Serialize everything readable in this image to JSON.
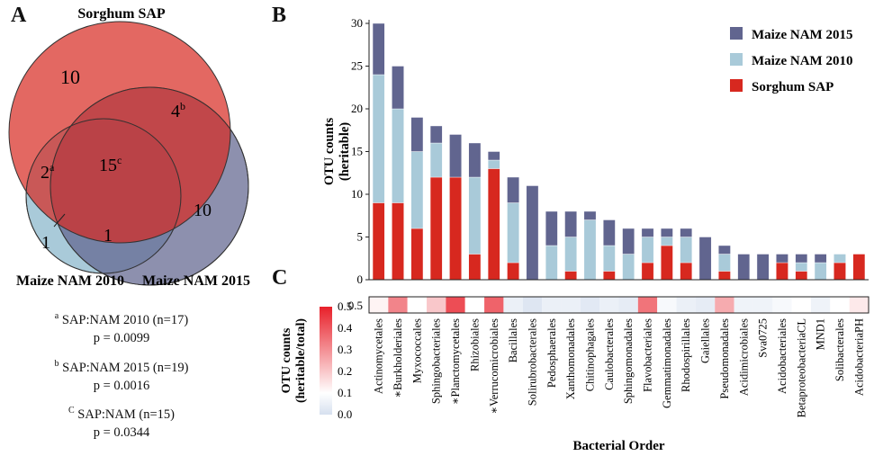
{
  "panels": {
    "a": "A",
    "b": "B",
    "c": "C"
  },
  "colors": {
    "maize2015": "#61658f",
    "maize2010": "#a9cad9",
    "sorghum": "#d7281f"
  },
  "venn": {
    "sets": {
      "sorghum": "Sorghum SAP",
      "nam2010": "Maize NAM 2010",
      "nam2015": "Maize NAM 2015"
    },
    "regions": {
      "sorghum_only": "10",
      "sorghum_2015": "4",
      "sorghum_2015_sup": "b",
      "sorghum_2010": "2",
      "sorghum_2010_sup": "a",
      "all_three": "15",
      "all_three_sup": "c",
      "nam2015_only": "10",
      "nam2010_only": "1",
      "nam2010_2015": "1"
    },
    "footnotes": [
      {
        "sup": "a",
        "text": "SAP:NAM 2010 (n=17)",
        "p": "p = 0.0099"
      },
      {
        "sup": "b",
        "text": "SAP:NAM 2015 (n=19)",
        "p": "p = 0.0016"
      },
      {
        "sup": "C",
        "text": "SAP:NAM (n=15)",
        "p": "p = 0.0344"
      }
    ]
  },
  "chart_data": [
    {
      "type": "bar",
      "stacked": true,
      "ylabel": "OTU counts (heritable)",
      "ylabel_lines": [
        "OTU counts",
        "(heritable)"
      ],
      "ylim": [
        0,
        30
      ],
      "yticks": [
        0,
        5,
        10,
        15,
        20,
        25,
        30
      ],
      "legend_position": "top-right",
      "categories": [
        "Actinomycetales",
        "Burkholderiales",
        "Myxococcales",
        "Sphingobacteriales",
        "Planctomycetales",
        "Rhizobiales",
        "Verrucomicrobiales",
        "Bacillales",
        "Solirubrobacterales",
        "Pedosphaerales",
        "Xanthomonadales",
        "Chitinophagales",
        "Caulobacterales",
        "Sphingomonadales",
        "Flavobacteriales",
        "Gemmatimonadales",
        "Rhodospirillales",
        "Gaiellales",
        "Pseudomonadales",
        "Acidimicrobiales",
        "Sva0725",
        "Acidobacteriales",
        "BetaproteobacteriaCL",
        "MND1",
        "Solibacterales",
        "AcidobacteriaPH"
      ],
      "starred": [
        false,
        true,
        false,
        false,
        true,
        false,
        true,
        false,
        false,
        false,
        false,
        false,
        false,
        false,
        false,
        false,
        false,
        false,
        false,
        false,
        false,
        false,
        false,
        false,
        false,
        false
      ],
      "series": [
        {
          "name": "Sorghum SAP",
          "color": "#d7281f",
          "values": [
            9,
            9,
            6,
            12,
            12,
            3,
            13,
            2,
            0,
            0,
            1,
            0,
            1,
            0,
            2,
            4,
            2,
            0,
            1,
            0,
            0,
            2,
            1,
            0,
            2,
            3
          ]
        },
        {
          "name": "Maize NAM 2010",
          "color": "#a9cad9",
          "values": [
            15,
            11,
            9,
            4,
            0,
            9,
            1,
            7,
            0,
            4,
            4,
            7,
            3,
            3,
            3,
            1,
            3,
            0,
            2,
            0,
            0,
            0,
            1,
            2,
            1,
            0
          ]
        },
        {
          "name": "Maize NAM 2015",
          "color": "#61658f",
          "values": [
            6,
            5,
            4,
            2,
            5,
            4,
            1,
            3,
            11,
            4,
            3,
            1,
            3,
            3,
            1,
            1,
            1,
            5,
            1,
            3,
            3,
            1,
            1,
            1,
            0,
            0
          ]
        }
      ]
    },
    {
      "type": "heatmap",
      "ylabel": "OTU counts (heritable/total)",
      "ylabel_lines": [
        "OTU counts",
        "(heritable/total)"
      ],
      "colorbar_range": [
        0.0,
        0.5
      ],
      "colorbar_ticks": [
        "0.5",
        "0.4",
        "0.3",
        "0.2",
        "0.1",
        "0.0"
      ],
      "row_tick": "0.5",
      "xlabel": "Bacterial Order",
      "values": [
        0.12,
        0.32,
        0.1,
        0.2,
        0.42,
        0.1,
        0.38,
        0.05,
        0.02,
        0.05,
        0.05,
        0.03,
        0.05,
        0.04,
        0.35,
        0.08,
        0.05,
        0.04,
        0.25,
        0.06,
        0.06,
        0.08,
        0.1,
        0.06,
        0.1,
        0.14
      ]
    }
  ]
}
